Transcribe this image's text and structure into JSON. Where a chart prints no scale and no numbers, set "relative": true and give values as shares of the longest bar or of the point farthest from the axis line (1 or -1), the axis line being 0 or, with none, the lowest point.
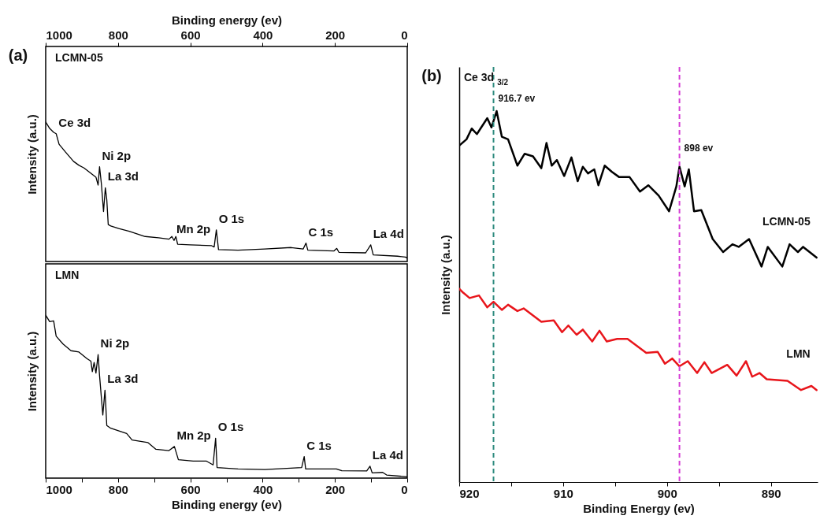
{
  "chart_data": [
    {
      "type": "line",
      "relative": true,
      "xlim": [
        1000,
        0
      ],
      "xlabel": "Binding energy (ev)",
      "ylabel": "Intensity (a.u.)",
      "xticks": [
        1000,
        800,
        600,
        400,
        200,
        0
      ],
      "annotations": [
        "(a)",
        {
          "text": "Ce 3d",
          "x": 971,
          "y": 0.915
        },
        {
          "text": "Ni 2p",
          "x": 851,
          "y": 0.679
        },
        {
          "text": "La 3d",
          "x": 835,
          "y": 0.528
        },
        {
          "text": "Mn 2p",
          "x": 645,
          "y": 0.151
        },
        {
          "text": "O 1s",
          "x": 528,
          "y": 0.226
        },
        {
          "text": "C 1s",
          "x": 280,
          "y": 0.132
        },
        {
          "text": "La 4d",
          "x": 101,
          "y": 0.119
        }
      ],
      "series": [
        {
          "name": "LCMN-05",
          "color": "#000000",
          "x": [
            1000,
            989,
            978,
            971,
            963,
            945,
            923,
            908,
            894,
            875,
            861,
            855,
            851,
            846,
            840,
            835,
            831,
            827,
            820,
            798,
            769,
            725,
            688,
            659,
            651,
            645,
            640,
            635,
            600,
            541,
            534,
            528,
            522,
            468,
            394,
            321,
            288,
            280,
            275,
            203,
            195,
            189,
            115,
            101,
            94,
            27,
            5,
            0
          ],
          "values": [
            1.0,
            0.953,
            0.925,
            0.915,
            0.84,
            0.783,
            0.717,
            0.689,
            0.67,
            0.632,
            0.604,
            0.547,
            0.679,
            0.557,
            0.358,
            0.528,
            0.443,
            0.264,
            0.255,
            0.236,
            0.217,
            0.179,
            0.17,
            0.16,
            0.179,
            0.151,
            0.179,
            0.123,
            0.119,
            0.113,
            0.104,
            0.226,
            0.085,
            0.081,
            0.089,
            0.1,
            0.089,
            0.132,
            0.081,
            0.075,
            0.094,
            0.066,
            0.062,
            0.119,
            0.047,
            0.038,
            0.032,
            0.025
          ]
        }
      ]
    },
    {
      "type": "line",
      "relative": true,
      "xlim": [
        1000,
        0
      ],
      "xlabel": "Binding energy (ev)",
      "ylabel": "Intensity (a.u.)",
      "xticks": [
        1000,
        {
          "value": 900,
          "label": null
        },
        800,
        {
          "value": 700,
          "label": null
        },
        600,
        {
          "value": 500,
          "label": null
        },
        400,
        {
          "value": 300,
          "label": null
        },
        200,
        {
          "value": 100,
          "label": null
        },
        0
      ],
      "annotations": [
        {
          "text": "Ni 2p",
          "x": 855,
          "y": 0.758
        },
        {
          "text": "La 3d",
          "x": 836,
          "y": 0.54
        },
        {
          "text": "Mn 2p",
          "x": 644,
          "y": 0.194
        },
        {
          "text": "O 1s",
          "x": 530,
          "y": 0.245
        },
        {
          "text": "C 1s",
          "x": 285,
          "y": 0.132
        },
        {
          "text": "La 4d",
          "x": 103,
          "y": 0.073
        }
      ],
      "series": [
        {
          "name": "LMN",
          "color": "#000000",
          "x": [
            1000,
            989,
            978,
            971,
            952,
            930,
            908,
            886,
            875,
            871,
            866,
            861,
            855,
            851,
            842,
            836,
            831,
            820,
            776,
            761,
            717,
            695,
            659,
            644,
            633,
            592,
            556,
            537,
            530,
            526,
            468,
            394,
            292,
            285,
            281,
            196,
            181,
            112,
            103,
            97,
            68,
            57,
            0
          ],
          "values": [
            1.0,
            0.96,
            0.965,
            0.871,
            0.823,
            0.782,
            0.774,
            0.734,
            0.718,
            0.653,
            0.71,
            0.645,
            0.758,
            0.629,
            0.387,
            0.54,
            0.323,
            0.306,
            0.274,
            0.234,
            0.218,
            0.177,
            0.169,
            0.194,
            0.113,
            0.105,
            0.105,
            0.081,
            0.245,
            0.065,
            0.056,
            0.053,
            0.065,
            0.132,
            0.056,
            0.056,
            0.045,
            0.044,
            0.073,
            0.032,
            0.035,
            0.019,
            0.008
          ]
        }
      ]
    },
    {
      "type": "line",
      "relative": true,
      "title": "Ce 3d$_{3/2}$",
      "xlim": [
        920,
        885.5
      ],
      "xlabel": "Binding Energy (ev)",
      "ylabel": "Intensity (a.u.)",
      "xticks": [
        920,
        {
          "value": 915,
          "label": null
        },
        910,
        {
          "value": 905,
          "label": null
        },
        900,
        {
          "value": 895,
          "label": null
        },
        890
      ],
      "annotations": [
        "(b)",
        {
          "text": "916.7 ev",
          "x": 916.7,
          "y": 1.035
        },
        {
          "text": "898 ev",
          "x": 898.8,
          "y": 0.901
        }
      ],
      "ref_lines": [
        {
          "axis": "x",
          "value": 916.7,
          "color": "#2e8b7f",
          "line_style": "dashed"
        },
        {
          "axis": "x",
          "value": 898.8,
          "color": "#d63fd6",
          "line_style": "dashed"
        }
      ],
      "series": [
        {
          "name": "LCMN-05",
          "color": "#000000",
          "x": [
            920,
            919.3,
            918.8,
            918.3,
            917.3,
            916.9,
            916.4,
            915.9,
            915.3,
            914.4,
            913.7,
            912.9,
            912.1,
            911.6,
            911.1,
            910.6,
            909.9,
            909.2,
            908.6,
            908.1,
            907.6,
            907.0,
            906.6,
            906.0,
            905.3,
            904.6,
            903.6,
            902.6,
            901.8,
            900.8,
            899.8,
            899.1,
            898.8,
            898.3,
            897.9,
            897.4,
            896.7,
            895.6,
            894.6,
            893.7,
            893.1,
            892.1,
            890.9,
            890.3,
            888.9,
            888.2,
            887.4,
            886.9,
            885.6
          ],
          "values": [
            0.907,
            0.924,
            0.953,
            0.938,
            0.981,
            0.956,
            1.0,
            0.931,
            0.924,
            0.853,
            0.885,
            0.878,
            0.846,
            0.914,
            0.853,
            0.868,
            0.825,
            0.875,
            0.811,
            0.85,
            0.832,
            0.843,
            0.8,
            0.853,
            0.836,
            0.822,
            0.822,
            0.783,
            0.8,
            0.772,
            0.73,
            0.797,
            0.85,
            0.797,
            0.843,
            0.73,
            0.733,
            0.655,
            0.62,
            0.641,
            0.634,
            0.655,
            0.581,
            0.634,
            0.581,
            0.641,
            0.62,
            0.634,
            0.605
          ]
        },
        {
          "name": "LMN",
          "color": "#e8151b",
          "x": [
            920,
            919.6,
            919.0,
            918.1,
            917.3,
            916.7,
            915.9,
            915.3,
            914.4,
            913.8,
            912.1,
            910.9,
            910.1,
            909.5,
            908.7,
            908.1,
            907.2,
            906.5,
            905.8,
            904.8,
            903.8,
            902.0,
            900.9,
            900.2,
            899.5,
            898.8,
            898.0,
            897.1,
            896.4,
            895.7,
            894.2,
            893.3,
            892.4,
            891.8,
            891.1,
            890.4,
            888.4,
            887.1,
            886.1,
            885.6
          ],
          "values": [
            0.521,
            0.51,
            0.496,
            0.503,
            0.471,
            0.486,
            0.464,
            0.478,
            0.461,
            0.468,
            0.432,
            0.436,
            0.404,
            0.422,
            0.397,
            0.411,
            0.379,
            0.408,
            0.379,
            0.386,
            0.386,
            0.348,
            0.351,
            0.319,
            0.333,
            0.312,
            0.326,
            0.294,
            0.323,
            0.294,
            0.316,
            0.287,
            0.326,
            0.284,
            0.294,
            0.277,
            0.273,
            0.248,
            0.259,
            0.248
          ]
        }
      ]
    }
  ]
}
